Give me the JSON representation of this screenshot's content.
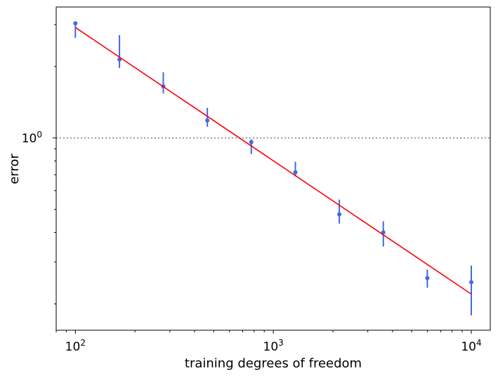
{
  "chart_data": {
    "type": "scatter",
    "title": "",
    "xlabel": "training degrees of freedom",
    "ylabel": "error",
    "xscale": "log",
    "yscale": "log",
    "xlim": [
      80,
      12470
    ],
    "ylim": [
      0.155,
      3.56
    ],
    "x_ticks": [
      {
        "value": 100,
        "base": "10",
        "exp": "2"
      },
      {
        "value": 1000,
        "base": "10",
        "exp": "3"
      },
      {
        "value": 10000,
        "base": "10",
        "exp": "4"
      }
    ],
    "y_ticks": [
      {
        "value": 1,
        "base": "10",
        "exp": "0"
      }
    ],
    "grid": false,
    "reference_line": {
      "y": 1,
      "style": "dotted",
      "color": "#808080"
    },
    "series": [
      {
        "type": "errorbar",
        "color": "#4169e1",
        "x": [
          100,
          167,
          278,
          464,
          774,
          1292,
          2154,
          3594,
          5995,
          10000
        ],
        "y": [
          3.04,
          2.14,
          1.65,
          1.185,
          0.96,
          0.717,
          0.477,
          0.4,
          0.257,
          0.247
        ],
        "y_lower": [
          2.64,
          1.97,
          1.54,
          1.115,
          0.855,
          0.689,
          0.436,
          0.349,
          0.234,
          0.179
        ],
        "y_upper": [
          3.08,
          2.71,
          1.89,
          1.34,
          0.987,
          0.794,
          0.55,
          0.446,
          0.279,
          0.29
        ]
      },
      {
        "type": "line",
        "color": "#ff0000",
        "x": [
          100,
          10000
        ],
        "y": [
          2.92,
          0.22
        ]
      }
    ]
  }
}
